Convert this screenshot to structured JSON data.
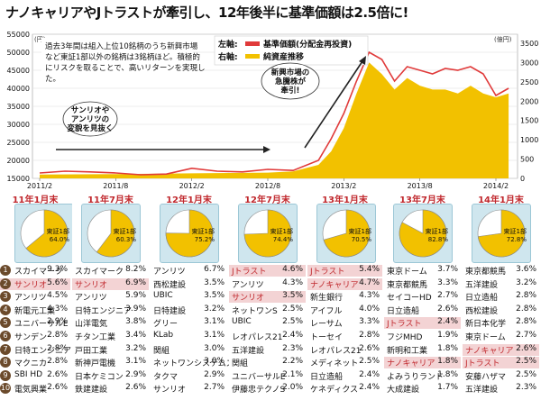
{
  "headline": "ナノキャリアやJトラストが牽引し、12年後半に基準価額は2.5倍に!",
  "chart_data": {
    "type": "line",
    "left_axis": {
      "ticks": [
        "55000",
        "50000",
        "45000",
        "40000",
        "35000",
        "30000",
        "25000",
        "20000",
        "15000"
      ],
      "unit": "(円)",
      "ylim": [
        15000,
        55000
      ]
    },
    "right_axis": {
      "ticks": [
        "3500",
        "3000",
        "2500",
        "2000",
        "1500",
        "1000",
        "500",
        "0"
      ],
      "unit": "(億円)",
      "ylim": [
        0,
        3500
      ]
    },
    "x_ticks": [
      "2011/2",
      "2011/8",
      "2012/2",
      "2012/8",
      "2013/2",
      "2013/8",
      "2014/2"
    ],
    "legend": [
      {
        "prefix": "左軸:",
        "name": "基準価額(分配金再投資)",
        "color": "#e03a3a"
      },
      {
        "prefix": "右軸:",
        "name": "純資産推移",
        "color": "#f2c100"
      }
    ],
    "note": "過去3年間は組入上位10銘柄のうち新興市場など東証1部以外の銘柄は3銘柄ほど。積極的にリスクを取ることで、高いリターンを実現した。",
    "callout1": "サンリオや\nアンリツの\n変貌を見抜く",
    "callout2": "新興市場の\n急騰株が\n牽引!",
    "series": [
      {
        "name": "基準価額(分配金再投資)",
        "x": [
          "2011/2",
          "2011/4",
          "2011/6",
          "2011/8",
          "2011/10",
          "2011/12",
          "2012/2",
          "2012/4",
          "2012/6",
          "2012/8",
          "2012/10",
          "2012/12",
          "2013/1",
          "2013/2",
          "2013/3",
          "2013/4",
          "2013/5",
          "2013/6",
          "2013/7",
          "2013/8",
          "2013/9",
          "2013/10",
          "2013/11",
          "2013/12",
          "2014/1",
          "2014/2",
          "2014/3"
        ],
        "values": [
          16500,
          17000,
          16800,
          16500,
          16000,
          16200,
          17800,
          17000,
          16800,
          17500,
          17200,
          20000,
          26000,
          33000,
          42000,
          50000,
          48000,
          42000,
          46000,
          45000,
          44000,
          45500,
          45000,
          46000,
          44000,
          38000,
          40000
        ]
      },
      {
        "name": "純資産推移",
        "x": [
          "2011/2",
          "2011/8",
          "2012/2",
          "2012/8",
          "2012/10",
          "2012/12",
          "2013/1",
          "2013/2",
          "2013/3",
          "2013/4",
          "2013/5",
          "2013/6",
          "2013/7",
          "2013/8",
          "2013/9",
          "2013/10",
          "2013/11",
          "2013/12",
          "2014/1",
          "2014/2",
          "2014/3"
        ],
        "values": [
          100,
          110,
          130,
          150,
          180,
          350,
          700,
          1300,
          2200,
          3000,
          2700,
          2300,
          2600,
          2400,
          2300,
          2300,
          2200,
          2400,
          2200,
          2100,
          2200
        ]
      }
    ]
  },
  "columns": [
    {
      "head": "11年1月末",
      "pie": {
        "label": "東証1部",
        "value": "64.0%",
        "pct": 64.0
      },
      "rows": [
        [
          "スカイマーク",
          "9.3%",
          false
        ],
        [
          "サンリオ",
          "5.6%",
          true
        ],
        [
          "アンリツ",
          "4.5%",
          false
        ],
        [
          "新電元工業",
          "4.3%",
          false
        ],
        [
          "ユニバーサルE",
          "2.9%",
          false
        ],
        [
          "サンデン",
          "2.8%",
          false
        ],
        [
          "日特エンジニア",
          "2.8%",
          false
        ],
        [
          "マクニカ",
          "2.8%",
          false
        ],
        [
          "SBI HD",
          "2.6%",
          false
        ],
        [
          "電気興業",
          "2.6%",
          false
        ]
      ]
    },
    {
      "head": "11年7月末",
      "pie": {
        "label": "東証1部",
        "value": "60.3%",
        "pct": 60.3
      },
      "rows": [
        [
          "スカイマーク",
          "8.2%",
          false
        ],
        [
          "サンリオ",
          "6.9%",
          true
        ],
        [
          "アンリツ",
          "5.9%",
          false
        ],
        [
          "日特エンジニア",
          "3.9%",
          false
        ],
        [
          "山洋電気",
          "3.8%",
          false
        ],
        [
          "チタン工業",
          "3.4%",
          false
        ],
        [
          "戸田工業",
          "3.2%",
          false
        ],
        [
          "新神戸電機",
          "3.1%",
          false
        ],
        [
          "日本ケミコン",
          "2.9%",
          false
        ],
        [
          "鉄建建設",
          "2.6%",
          false
        ]
      ]
    },
    {
      "head": "12年1月末",
      "pie": {
        "label": "東証1部",
        "value": "75.2%",
        "pct": 75.2
      },
      "rows": [
        [
          "アンリツ",
          "6.7%",
          false
        ],
        [
          "西松建設",
          "3.5%",
          false
        ],
        [
          "UBIC",
          "3.5%",
          false
        ],
        [
          "日特建設",
          "3.2%",
          false
        ],
        [
          "グリー",
          "3.1%",
          false
        ],
        [
          "KLab",
          "3.1%",
          false
        ],
        [
          "関組",
          "3.0%",
          false
        ],
        [
          "ネットワンシステムズ",
          "3.0%",
          false
        ],
        [
          "タクマ",
          "2.9%",
          false
        ],
        [
          "サンリオ",
          "2.7%",
          false
        ]
      ]
    },
    {
      "head": "12年7月末",
      "pie": {
        "label": "東証1部",
        "value": "74.4%",
        "pct": 74.4
      },
      "rows": [
        [
          "Jトラスト",
          "4.6%",
          true
        ],
        [
          "アンリツ",
          "4.3%",
          false
        ],
        [
          "サンリオ",
          "3.5%",
          true
        ],
        [
          "ネットワンS",
          "2.5%",
          false
        ],
        [
          "UBIC",
          "2.5%",
          false
        ],
        [
          "レオパレス21",
          "2.4%",
          false
        ],
        [
          "五洋建設",
          "2.3%",
          false
        ],
        [
          "関組",
          "2.2%",
          false
        ],
        [
          "ユニバーサルE",
          "2.1%",
          false
        ],
        [
          "伊藤忠テクノS",
          "2.0%",
          false
        ]
      ]
    },
    {
      "head": "13年1月末",
      "pie": {
        "label": "東証1部",
        "value": "70.5%",
        "pct": 70.5
      },
      "rows": [
        [
          "Jトラスト",
          "5.4%",
          true
        ],
        [
          "ナノキャリア",
          "4.7%",
          true
        ],
        [
          "新生銀行",
          "4.3%",
          false
        ],
        [
          "アイフル",
          "4.0%",
          false
        ],
        [
          "レーサム",
          "3.3%",
          false
        ],
        [
          "トーセイ",
          "2.8%",
          false
        ],
        [
          "レオパレス21",
          "2.6%",
          false
        ],
        [
          "メディネット",
          "2.5%",
          false
        ],
        [
          "日立造船",
          "2.4%",
          false
        ],
        [
          "ケネディクス",
          "2.4%",
          false
        ]
      ]
    },
    {
      "head": "13年7月末",
      "pie": {
        "label": "東証1部",
        "value": "82.8%",
        "pct": 82.8
      },
      "rows": [
        [
          "東京ドーム",
          "3.7%",
          false
        ],
        [
          "東京都競馬",
          "3.3%",
          false
        ],
        [
          "セイコーHD",
          "2.7%",
          false
        ],
        [
          "日立造船",
          "2.6%",
          false
        ],
        [
          "Jトラスト",
          "2.4%",
          true
        ],
        [
          "フジMHD",
          "1.9%",
          false
        ],
        [
          "新明和工業",
          "1.8%",
          false
        ],
        [
          "ナノキャリア",
          "1.8%",
          true
        ],
        [
          "よみうりランド",
          "1.8%",
          false
        ],
        [
          "大成建設",
          "1.7%",
          false
        ]
      ]
    },
    {
      "head": "14年1月末",
      "pie": {
        "label": "東証1部",
        "value": "72.8%",
        "pct": 72.8
      },
      "rows": [
        [
          "東京都競馬",
          "3.6%",
          false
        ],
        [
          "五洋建設",
          "3.2%",
          false
        ],
        [
          "日立造船",
          "2.8%",
          false
        ],
        [
          "西松建設",
          "2.8%",
          false
        ],
        [
          "新日本化学",
          "2.8%",
          false
        ],
        [
          "東京ドーム",
          "2.7%",
          false
        ],
        [
          "ナノキャリア",
          "2.6%",
          true
        ],
        [
          "Jトラスト",
          "2.5%",
          true
        ],
        [
          "安藤ハザマ",
          "2.5%",
          false
        ],
        [
          "五洋建設",
          "2.3%",
          false
        ]
      ]
    }
  ],
  "colors": {
    "price": "#e03a3a",
    "assets": "#f2c100",
    "pie_main": "#f2c100",
    "pie_other": "#ffffff",
    "highlight": "#f3d3d4",
    "accent": "#c0282d"
  }
}
